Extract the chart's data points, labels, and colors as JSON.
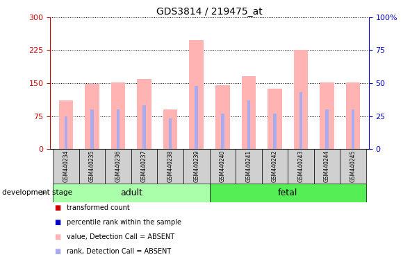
{
  "title": "GDS3814 / 219475_at",
  "samples": [
    "GSM440234",
    "GSM440235",
    "GSM440236",
    "GSM440237",
    "GSM440238",
    "GSM440239",
    "GSM440240",
    "GSM440241",
    "GSM440242",
    "GSM440243",
    "GSM440244",
    "GSM440245"
  ],
  "values": [
    110,
    148,
    152,
    160,
    90,
    248,
    145,
    165,
    138,
    225,
    152,
    152
  ],
  "ranks_pct": [
    25,
    30,
    30,
    33,
    23,
    48,
    27,
    37,
    27,
    43,
    30,
    30
  ],
  "left_ylim": [
    0,
    300
  ],
  "right_ylim": [
    0,
    100
  ],
  "left_yticks": [
    0,
    75,
    150,
    225,
    300
  ],
  "right_yticks": [
    0,
    25,
    50,
    75,
    100
  ],
  "bar_color": "#ffb3b3",
  "rank_color": "#aaaaee",
  "left_axis_color": "#cc0000",
  "right_axis_color": "#0000cc",
  "bar_width": 0.55,
  "rank_bar_width": 0.12,
  "adult_color": "#aaffaa",
  "fetal_color": "#55ee55",
  "adult_indices": [
    0,
    1,
    2,
    3,
    4,
    5
  ],
  "fetal_indices": [
    6,
    7,
    8,
    9,
    10,
    11
  ],
  "legend_items": [
    {
      "color": "#cc0000",
      "label": "transformed count"
    },
    {
      "color": "#0000cc",
      "label": "percentile rank within the sample"
    },
    {
      "color": "#ffb3b3",
      "label": "value, Detection Call = ABSENT"
    },
    {
      "color": "#aaaaee",
      "label": "rank, Detection Call = ABSENT"
    }
  ]
}
